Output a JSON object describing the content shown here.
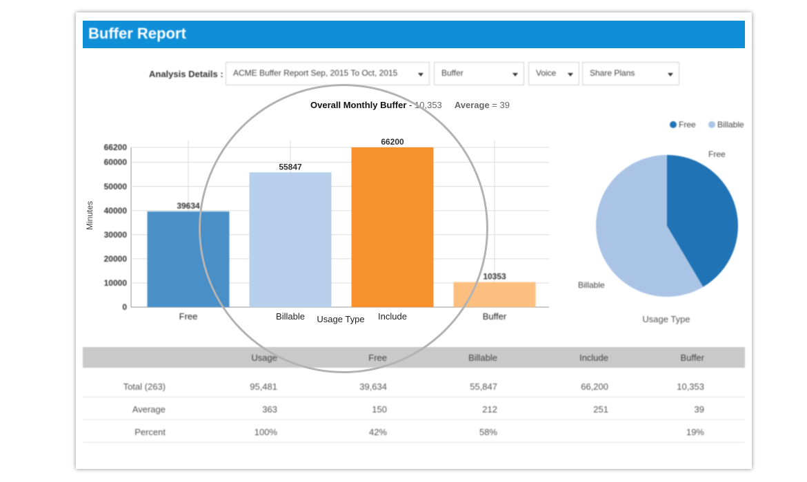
{
  "header": {
    "title": "Buffer Report"
  },
  "filters": {
    "label": "Analysis Details :",
    "report": "ACME Buffer Report Sep, 2015 To Oct, 2015",
    "type": "Buffer",
    "service": "Voice",
    "plan": "Share Plans"
  },
  "summary": {
    "overall_label": "Overall Monthly Buffer",
    "overall_sep": "-",
    "overall_value": "10,353",
    "average_label": "Average",
    "average_sep": "=",
    "average_value": "39"
  },
  "bar_chart": {
    "ylabel": "Minutes",
    "xlabel": "Usage Type",
    "yticks": [
      "0",
      "10000",
      "20000",
      "30000",
      "40000",
      "50000",
      "60000",
      "66200"
    ]
  },
  "pie_chart": {
    "legend": [
      "Free",
      "Billable"
    ],
    "labels": [
      "Free",
      "Billable"
    ],
    "xlabel": "Usage Type"
  },
  "chart_data": [
    {
      "type": "bar",
      "categories": [
        "Free",
        "Billable",
        "Include",
        "Buffer"
      ],
      "values": [
        39634,
        55847,
        66200,
        10353
      ],
      "data_labels": [
        "39634",
        "55847",
        "66200",
        "10353"
      ],
      "colors": [
        "#4a90c8",
        "#b8d0ec",
        "#f7912e",
        "#fdbf80"
      ],
      "xlabel": "Usage Type",
      "ylabel": "Minutes",
      "ylim": [
        0,
        66200
      ],
      "grid": true
    },
    {
      "type": "pie",
      "categories": [
        "Free",
        "Billable"
      ],
      "values": [
        39634,
        55847
      ],
      "colors": [
        "#2073b5",
        "#aac4e6"
      ],
      "legend": "top-right",
      "xlabel": "Usage Type"
    }
  ],
  "table": {
    "headers": [
      "",
      "Usage",
      "Free",
      "Billable",
      "Include",
      "Buffer"
    ],
    "rows": [
      [
        "Total (263)",
        "95,481",
        "39,634",
        "55,847",
        "66,200",
        "10,353"
      ],
      [
        "Average",
        "363",
        "150",
        "212",
        "251",
        "39"
      ],
      [
        "Percent",
        "100%",
        "42%",
        "58%",
        "",
        "19%"
      ]
    ]
  }
}
